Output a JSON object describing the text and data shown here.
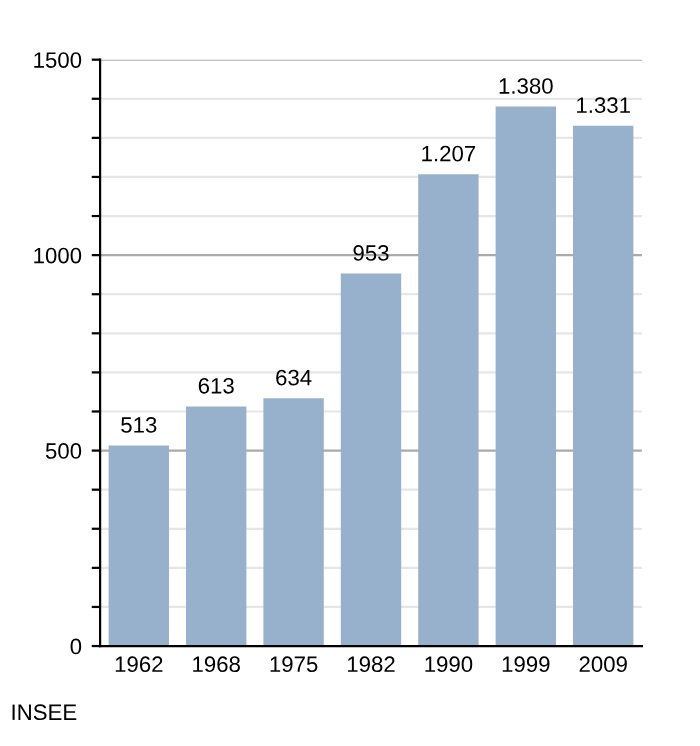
{
  "chart_data": {
    "type": "bar",
    "categories": [
      "1962",
      "1968",
      "1975",
      "1982",
      "1990",
      "1999",
      "2009"
    ],
    "values": [
      513,
      613,
      634,
      953,
      1207,
      1380,
      1331
    ],
    "value_labels": [
      "513",
      "613",
      "634",
      "953",
      "1.207",
      "1.380",
      "1.331"
    ],
    "color": "#97b1cc",
    "ylim": [
      0,
      1500
    ],
    "yticks": [
      0,
      {
        "value": 100,
        "label": null
      },
      {
        "value": 200,
        "label": null
      },
      {
        "value": 300,
        "label": null
      },
      {
        "value": 400,
        "label": null
      },
      500,
      {
        "value": 600,
        "label": null
      },
      {
        "value": 700,
        "label": null
      },
      {
        "value": 800,
        "label": null
      },
      {
        "value": 900,
        "label": null
      },
      1000,
      {
        "value": 1100,
        "label": null
      },
      {
        "value": 1200,
        "label": null
      },
      {
        "value": 1300,
        "label": null
      },
      {
        "value": 1400,
        "label": null
      },
      1500
    ],
    "grid": "y",
    "legend": false,
    "annotations": [
      "INSEE"
    ]
  }
}
